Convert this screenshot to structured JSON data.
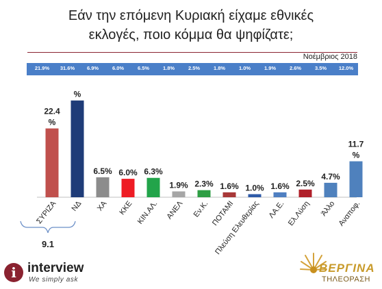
{
  "header": {
    "title_line1": "Εάν την επόμενη Κυριακή είχαμε εθνικές",
    "title_line2": "εκλογές, ποιο κόμμα θα ψηφίζατε;",
    "date": "Νοέμβριος 2018"
  },
  "comparison_strip": [
    "21.9%",
    "31.6%",
    "6.9%",
    "6.0%",
    "6.5%",
    "1.8%",
    "2.5%",
    "1.8%",
    "1.0%",
    "1.9%",
    "2.6%",
    "3.5%",
    "12.0%"
  ],
  "gap_label": "9.1",
  "chart_data": {
    "type": "bar",
    "title": "",
    "categories": [
      "ΣΥΡΙΖΑ",
      "ΝΔ",
      "ΧΑ",
      "ΚΚΕ",
      "ΚΙΝ.ΑΛ.",
      "ΑΝΕΛ",
      "Εν.Κ.",
      "ΠΟΤΑΜΙ",
      "Πλεύση Ελευθερίας",
      "ΛΑ.Ε.",
      "Ελ.Λύση",
      "Άλλο",
      "Αναποφ."
    ],
    "values": [
      22.4,
      31.5,
      6.5,
      6.0,
      6.3,
      1.9,
      2.3,
      1.6,
      1.0,
      1.6,
      2.5,
      4.7,
      11.7
    ],
    "value_labels": [
      "22.4\n%",
      "%",
      "6.5%",
      "6.0%",
      "6.3%",
      "1.9%",
      "2.3%",
      "1.6%",
      "1.0%",
      "1.6%",
      "2.5%",
      "4.7%",
      "11.7\n%"
    ],
    "colors": [
      "#c0504d",
      "#1f3c78",
      "#8c8c8c",
      "#ee1c24",
      "#22a44a",
      "#a6a6a6",
      "#2e9e44",
      "#a83838",
      "#2e5aa8",
      "#4f7fc1",
      "#b0202a",
      "#4f81bd",
      "#4f81bd"
    ],
    "ylim": [
      0,
      33
    ],
    "grid": false,
    "legend": "none"
  },
  "logos": {
    "interview_name": "interview",
    "interview_tagline": "We simply ask",
    "tv_name": "ΒΕΡΓΙΝΑ",
    "tv_sub": "ΤΗΛΕΟΡΑΣΗ"
  }
}
